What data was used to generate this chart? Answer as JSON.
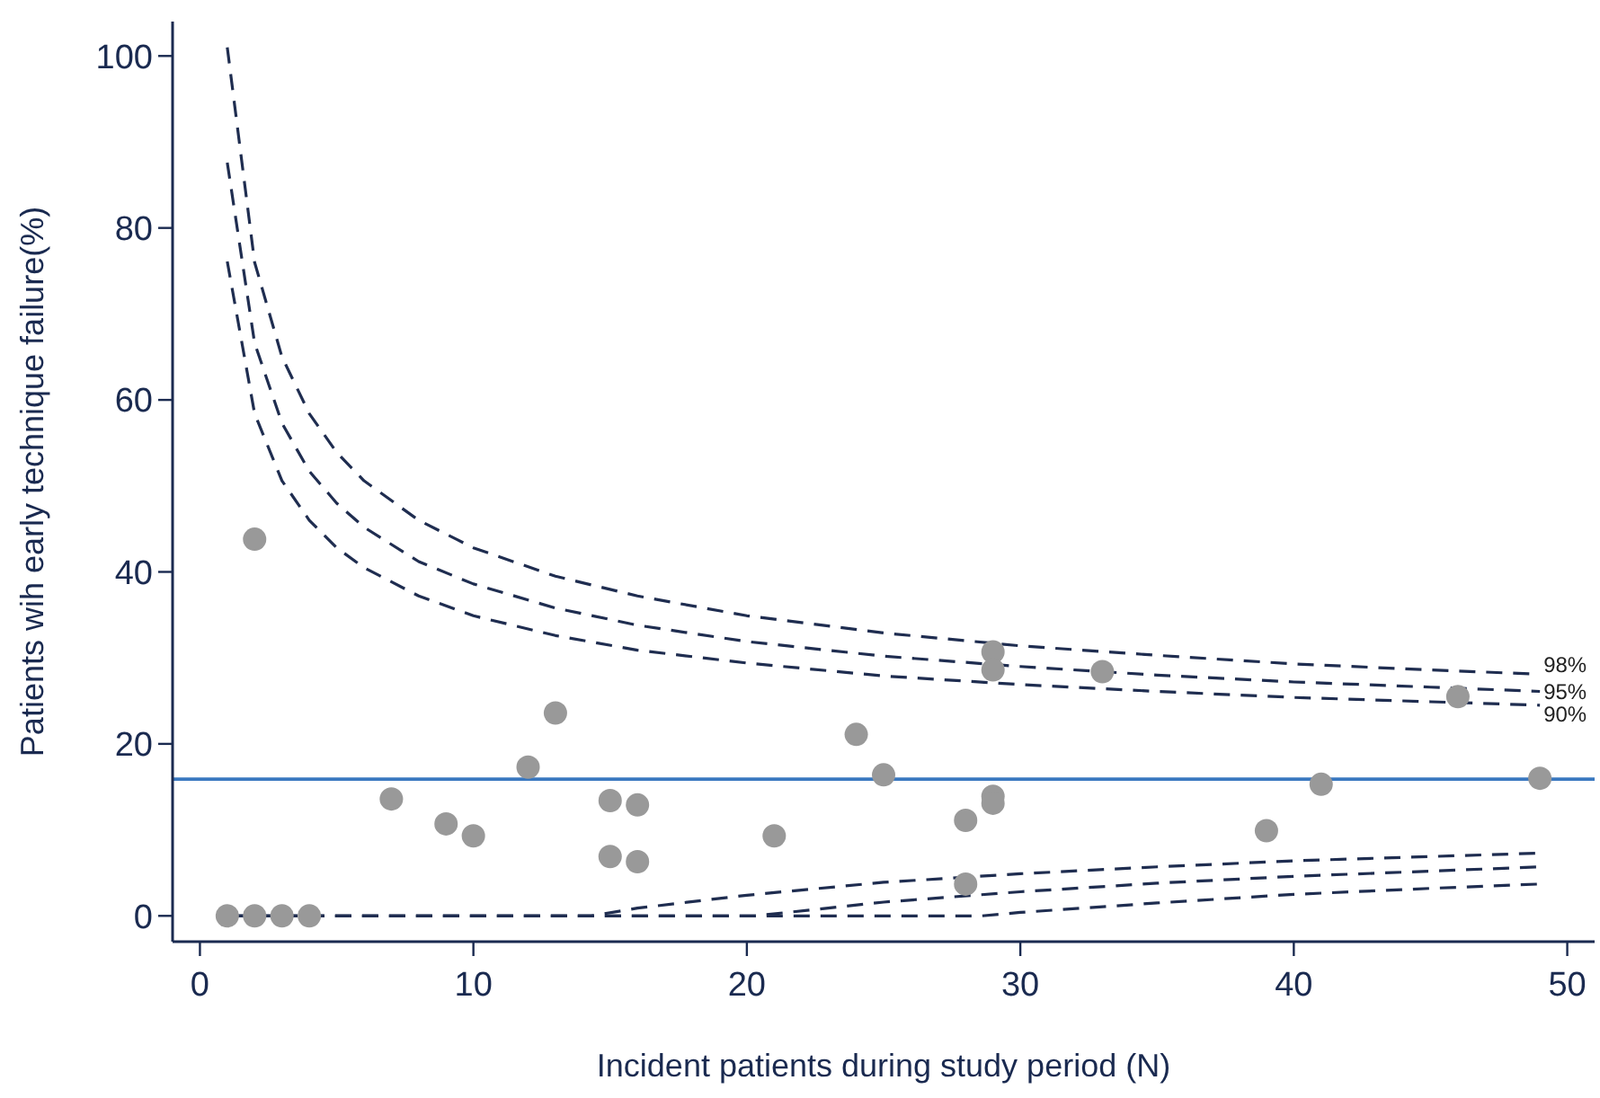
{
  "chart_data": {
    "type": "scatter",
    "xlabel": "Incident patients during study period (N)",
    "ylabel": "Patients wih early technique failure(%)",
    "xlim": [
      -1,
      51
    ],
    "ylim": [
      -3,
      104
    ],
    "xticks": [
      0,
      10,
      20,
      30,
      40,
      50
    ],
    "yticks": [
      0,
      20,
      40,
      60,
      80,
      100
    ],
    "grid": false,
    "ref_lines": [
      {
        "axis": "y",
        "value": 15.9,
        "color": "#3a78c0",
        "line_style": "solid"
      }
    ],
    "series": [
      {
        "color": "#999999",
        "marker": "circle",
        "x": [
          1,
          2,
          3,
          4,
          2,
          7,
          9,
          10,
          12,
          13,
          15,
          15,
          16,
          16,
          21,
          24,
          25,
          28,
          28,
          29,
          29,
          29,
          29,
          33,
          39,
          41,
          46,
          49
        ],
        "values": [
          0,
          0,
          0,
          0,
          43.8,
          13.6,
          10.7,
          9.3,
          17.3,
          23.6,
          13.4,
          6.9,
          12.9,
          6.3,
          9.3,
          21.1,
          16.4,
          11.1,
          3.7,
          30.7,
          28.6,
          13.9,
          13.1,
          28.4,
          9.9,
          15.3,
          25.5,
          16.0
        ]
      },
      {
        "type": "line",
        "name": "98%",
        "color": "#1f2d50",
        "line_style": "dashed",
        "marker": "none",
        "x": [
          1,
          2,
          3,
          4,
          5,
          6,
          8,
          10,
          13,
          16,
          20,
          25,
          30,
          35,
          40,
          45,
          49
        ],
        "values": [
          101.0,
          76.0,
          65.0,
          58.4,
          53.9,
          50.6,
          46.0,
          42.8,
          39.5,
          37.2,
          34.9,
          32.9,
          31.4,
          30.3,
          29.3,
          28.6,
          28.1
        ]
      },
      {
        "type": "line",
        "name": "95%",
        "color": "#1f2d50",
        "line_style": "dashed",
        "marker": "none",
        "x": [
          1,
          2,
          3,
          4,
          5,
          6,
          8,
          10,
          13,
          16,
          20,
          25,
          30,
          35,
          40,
          45,
          49
        ],
        "values": [
          87.6,
          66.6,
          57.3,
          51.7,
          48.0,
          45.2,
          41.2,
          38.6,
          35.8,
          33.8,
          31.9,
          30.2,
          29.0,
          28.0,
          27.2,
          26.6,
          26.1
        ]
      },
      {
        "type": "line",
        "name": "90%",
        "color": "#1f2d50",
        "line_style": "dashed",
        "marker": "none",
        "x": [
          1,
          2,
          3,
          4,
          5,
          6,
          8,
          10,
          13,
          16,
          20,
          25,
          30,
          35,
          40,
          45,
          49
        ],
        "values": [
          76.1,
          58.4,
          50.6,
          46.0,
          42.8,
          40.5,
          37.2,
          34.9,
          32.6,
          30.9,
          29.4,
          27.9,
          26.9,
          26.1,
          25.4,
          24.9,
          24.5
        ]
      },
      {
        "type": "line",
        "color": "#1f2d50",
        "line_style": "dashed",
        "marker": "none",
        "x": [
          1,
          14.3,
          16,
          20,
          25,
          30,
          35,
          40,
          45,
          49
        ],
        "values": [
          0,
          0,
          0.9,
          2.4,
          3.9,
          4.9,
          5.7,
          6.4,
          6.9,
          7.3
        ]
      },
      {
        "type": "line",
        "color": "#1f2d50",
        "line_style": "dashed",
        "marker": "none",
        "x": [
          1,
          20.3,
          25,
          30,
          35,
          40,
          45,
          49
        ],
        "values": [
          0,
          0,
          1.6,
          2.8,
          3.8,
          4.6,
          5.2,
          5.7
        ]
      },
      {
        "type": "line",
        "color": "#1f2d50",
        "line_style": "dashed",
        "marker": "none",
        "x": [
          1,
          28.6,
          30,
          35,
          40,
          45,
          49
        ],
        "values": [
          0,
          0,
          0.4,
          1.5,
          2.5,
          3.2,
          3.7
        ]
      }
    ]
  }
}
